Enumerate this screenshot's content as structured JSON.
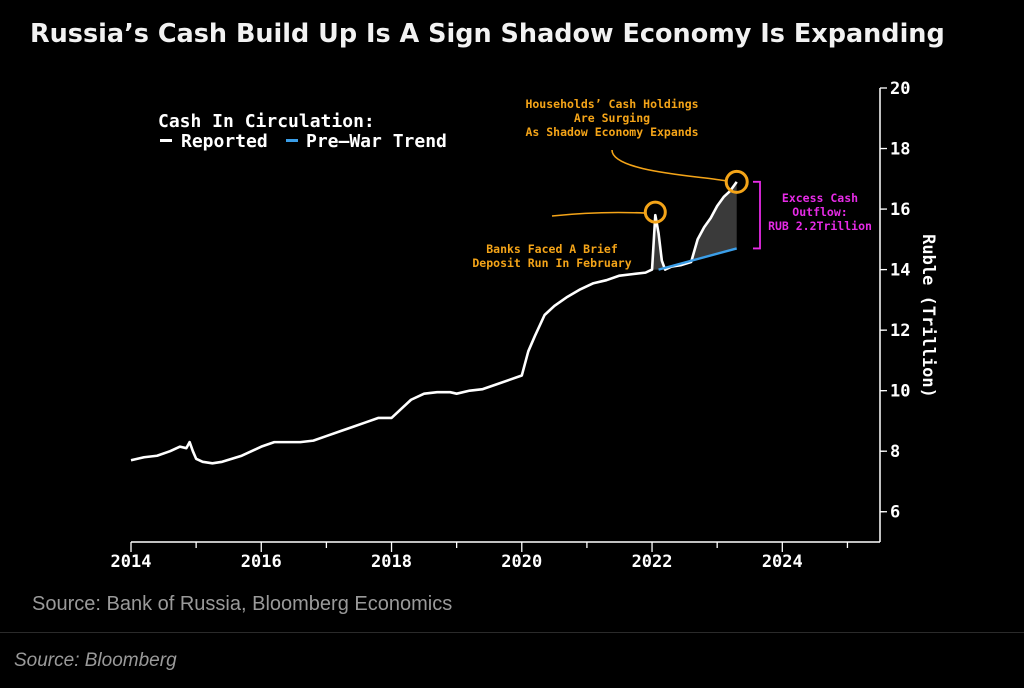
{
  "chart_data": {
    "type": "line",
    "title": "Russia’s Cash Build Up Is A Sign Shadow Economy Is Expanding",
    "legend": {
      "heading": "Cash In Circulation:",
      "items": [
        {
          "label": "Reported",
          "color": "#ffffff"
        },
        {
          "label": "Pre–War Trend",
          "color": "#3b9ee8"
        }
      ],
      "position": "top-left"
    },
    "ylabel": "Ruble (Trillion)",
    "ylim": [
      5,
      20
    ],
    "yticks": [
      6,
      8,
      10,
      12,
      14,
      16,
      18,
      20
    ],
    "xlim": [
      2014,
      2025.5
    ],
    "xticks": [
      2014,
      2016,
      2018,
      2020,
      2022,
      2024
    ],
    "series": [
      {
        "name": "Reported",
        "color": "#ffffff",
        "x": [
          2014.0,
          2014.2,
          2014.4,
          2014.6,
          2014.75,
          2014.85,
          2014.9,
          2014.95,
          2015.0,
          2015.1,
          2015.25,
          2015.4,
          2015.55,
          2015.7,
          2015.85,
          2016.0,
          2016.2,
          2016.4,
          2016.6,
          2016.8,
          2017.0,
          2017.2,
          2017.4,
          2017.6,
          2017.8,
          2018.0,
          2018.15,
          2018.3,
          2018.5,
          2018.7,
          2018.9,
          2019.0,
          2019.2,
          2019.4,
          2019.6,
          2019.8,
          2020.0,
          2020.1,
          2020.2,
          2020.35,
          2020.5,
          2020.7,
          2020.9,
          2021.1,
          2021.3,
          2021.5,
          2021.7,
          2021.9,
          2022.0,
          2022.05,
          2022.1,
          2022.15,
          2022.2,
          2022.3,
          2022.45,
          2022.6,
          2022.7,
          2022.8,
          2022.9,
          2023.0,
          2023.1,
          2023.2,
          2023.3
        ],
        "values": [
          7.7,
          7.8,
          7.85,
          8.0,
          8.15,
          8.1,
          8.3,
          8.0,
          7.75,
          7.65,
          7.6,
          7.65,
          7.75,
          7.85,
          8.0,
          8.15,
          8.3,
          8.3,
          8.3,
          8.35,
          8.5,
          8.65,
          8.8,
          8.95,
          9.1,
          9.1,
          9.4,
          9.7,
          9.9,
          9.95,
          9.95,
          9.9,
          10.0,
          10.05,
          10.2,
          10.35,
          10.5,
          11.3,
          11.8,
          12.5,
          12.8,
          13.1,
          13.35,
          13.55,
          13.65,
          13.8,
          13.85,
          13.9,
          14.0,
          15.8,
          15.2,
          14.3,
          14.0,
          14.1,
          14.15,
          14.25,
          15.0,
          15.4,
          15.7,
          16.1,
          16.4,
          16.6,
          16.9
        ]
      },
      {
        "name": "Pre–War Trend",
        "color": "#3b9ee8",
        "x": [
          2022.1,
          2023.3
        ],
        "values": [
          14.0,
          14.7
        ]
      }
    ],
    "annotations": [
      {
        "text": [
          "Households’ Cash Holdings",
          "Are Surging",
          "As Shadow Economy Expands"
        ],
        "color": "#f4a418",
        "point": [
          2023.3,
          16.9
        ]
      },
      {
        "text": [
          "Banks Faced A Brief",
          "Deposit Run In February"
        ],
        "color": "#f4a418",
        "point": [
          2022.05,
          15.9
        ]
      },
      {
        "text": [
          "Excess Cash",
          "Outflow:",
          "RUB 2.2Trillion"
        ],
        "color": "#e62be6"
      }
    ],
    "source": "Source: Bank of Russia, Bloomberg Economics"
  },
  "footer": "Source: Bloomberg"
}
